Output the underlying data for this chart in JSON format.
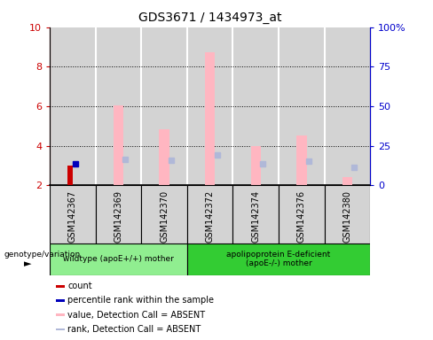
{
  "title": "GDS3671 / 1434973_at",
  "samples": [
    "GSM142367",
    "GSM142369",
    "GSM142370",
    "GSM142372",
    "GSM142374",
    "GSM142376",
    "GSM142380"
  ],
  "group0_label": "wildtype (apoE+/+) mother",
  "group1_label": "apolipoprotein E-deficient\n(apoE-/-) mother",
  "group0_color": "#90ee90",
  "group1_color": "#33cc33",
  "group0_samples": [
    0,
    1,
    2
  ],
  "group1_samples": [
    3,
    4,
    5,
    6
  ],
  "ylim_left": [
    2,
    10
  ],
  "ylim_right": [
    0,
    100
  ],
  "yticks_left": [
    2,
    4,
    6,
    8,
    10
  ],
  "ytick_labels_left": [
    "2",
    "4",
    "6",
    "8",
    "10"
  ],
  "yticks_right": [
    0,
    25,
    50,
    75,
    100
  ],
  "ytick_labels_right": [
    "0",
    "25",
    "50",
    "75",
    "100%"
  ],
  "left_tick_color": "#cc0000",
  "right_tick_color": "#0000cc",
  "bar_bg_color": "#d3d3d3",
  "count_color": "#cc0000",
  "percentile_color": "#0000bb",
  "value_absent_color": "#ffb6c1",
  "rank_absent_color": "#b0b8d8",
  "legend_items": [
    {
      "label": "count",
      "color": "#cc0000"
    },
    {
      "label": "percentile rank within the sample",
      "color": "#0000bb"
    },
    {
      "label": "value, Detection Call = ABSENT",
      "color": "#ffb6c1"
    },
    {
      "label": "rank, Detection Call = ABSENT",
      "color": "#b0b8d8"
    }
  ],
  "data": {
    "GSM142367": {
      "count": 3.0,
      "percentile": 3.1,
      "value_absent": null,
      "rank_absent": null
    },
    "GSM142369": {
      "count": null,
      "percentile": null,
      "value_absent": 6.05,
      "rank_absent": 3.3
    },
    "GSM142370": {
      "count": null,
      "percentile": null,
      "value_absent": 4.85,
      "rank_absent": 3.25
    },
    "GSM142372": {
      "count": null,
      "percentile": null,
      "value_absent": 8.75,
      "rank_absent": 3.55
    },
    "GSM142374": {
      "count": null,
      "percentile": null,
      "value_absent": 4.0,
      "rank_absent": 3.1
    },
    "GSM142376": {
      "count": null,
      "percentile": null,
      "value_absent": 4.5,
      "rank_absent": 3.2
    },
    "GSM142380": {
      "count": null,
      "percentile": null,
      "value_absent": 2.4,
      "rank_absent": 2.9
    }
  },
  "x_positions": [
    0,
    1,
    2,
    3,
    4,
    5,
    6
  ],
  "bar_width": 0.22,
  "rank_marker_size": 5,
  "percentile_marker_size": 4
}
